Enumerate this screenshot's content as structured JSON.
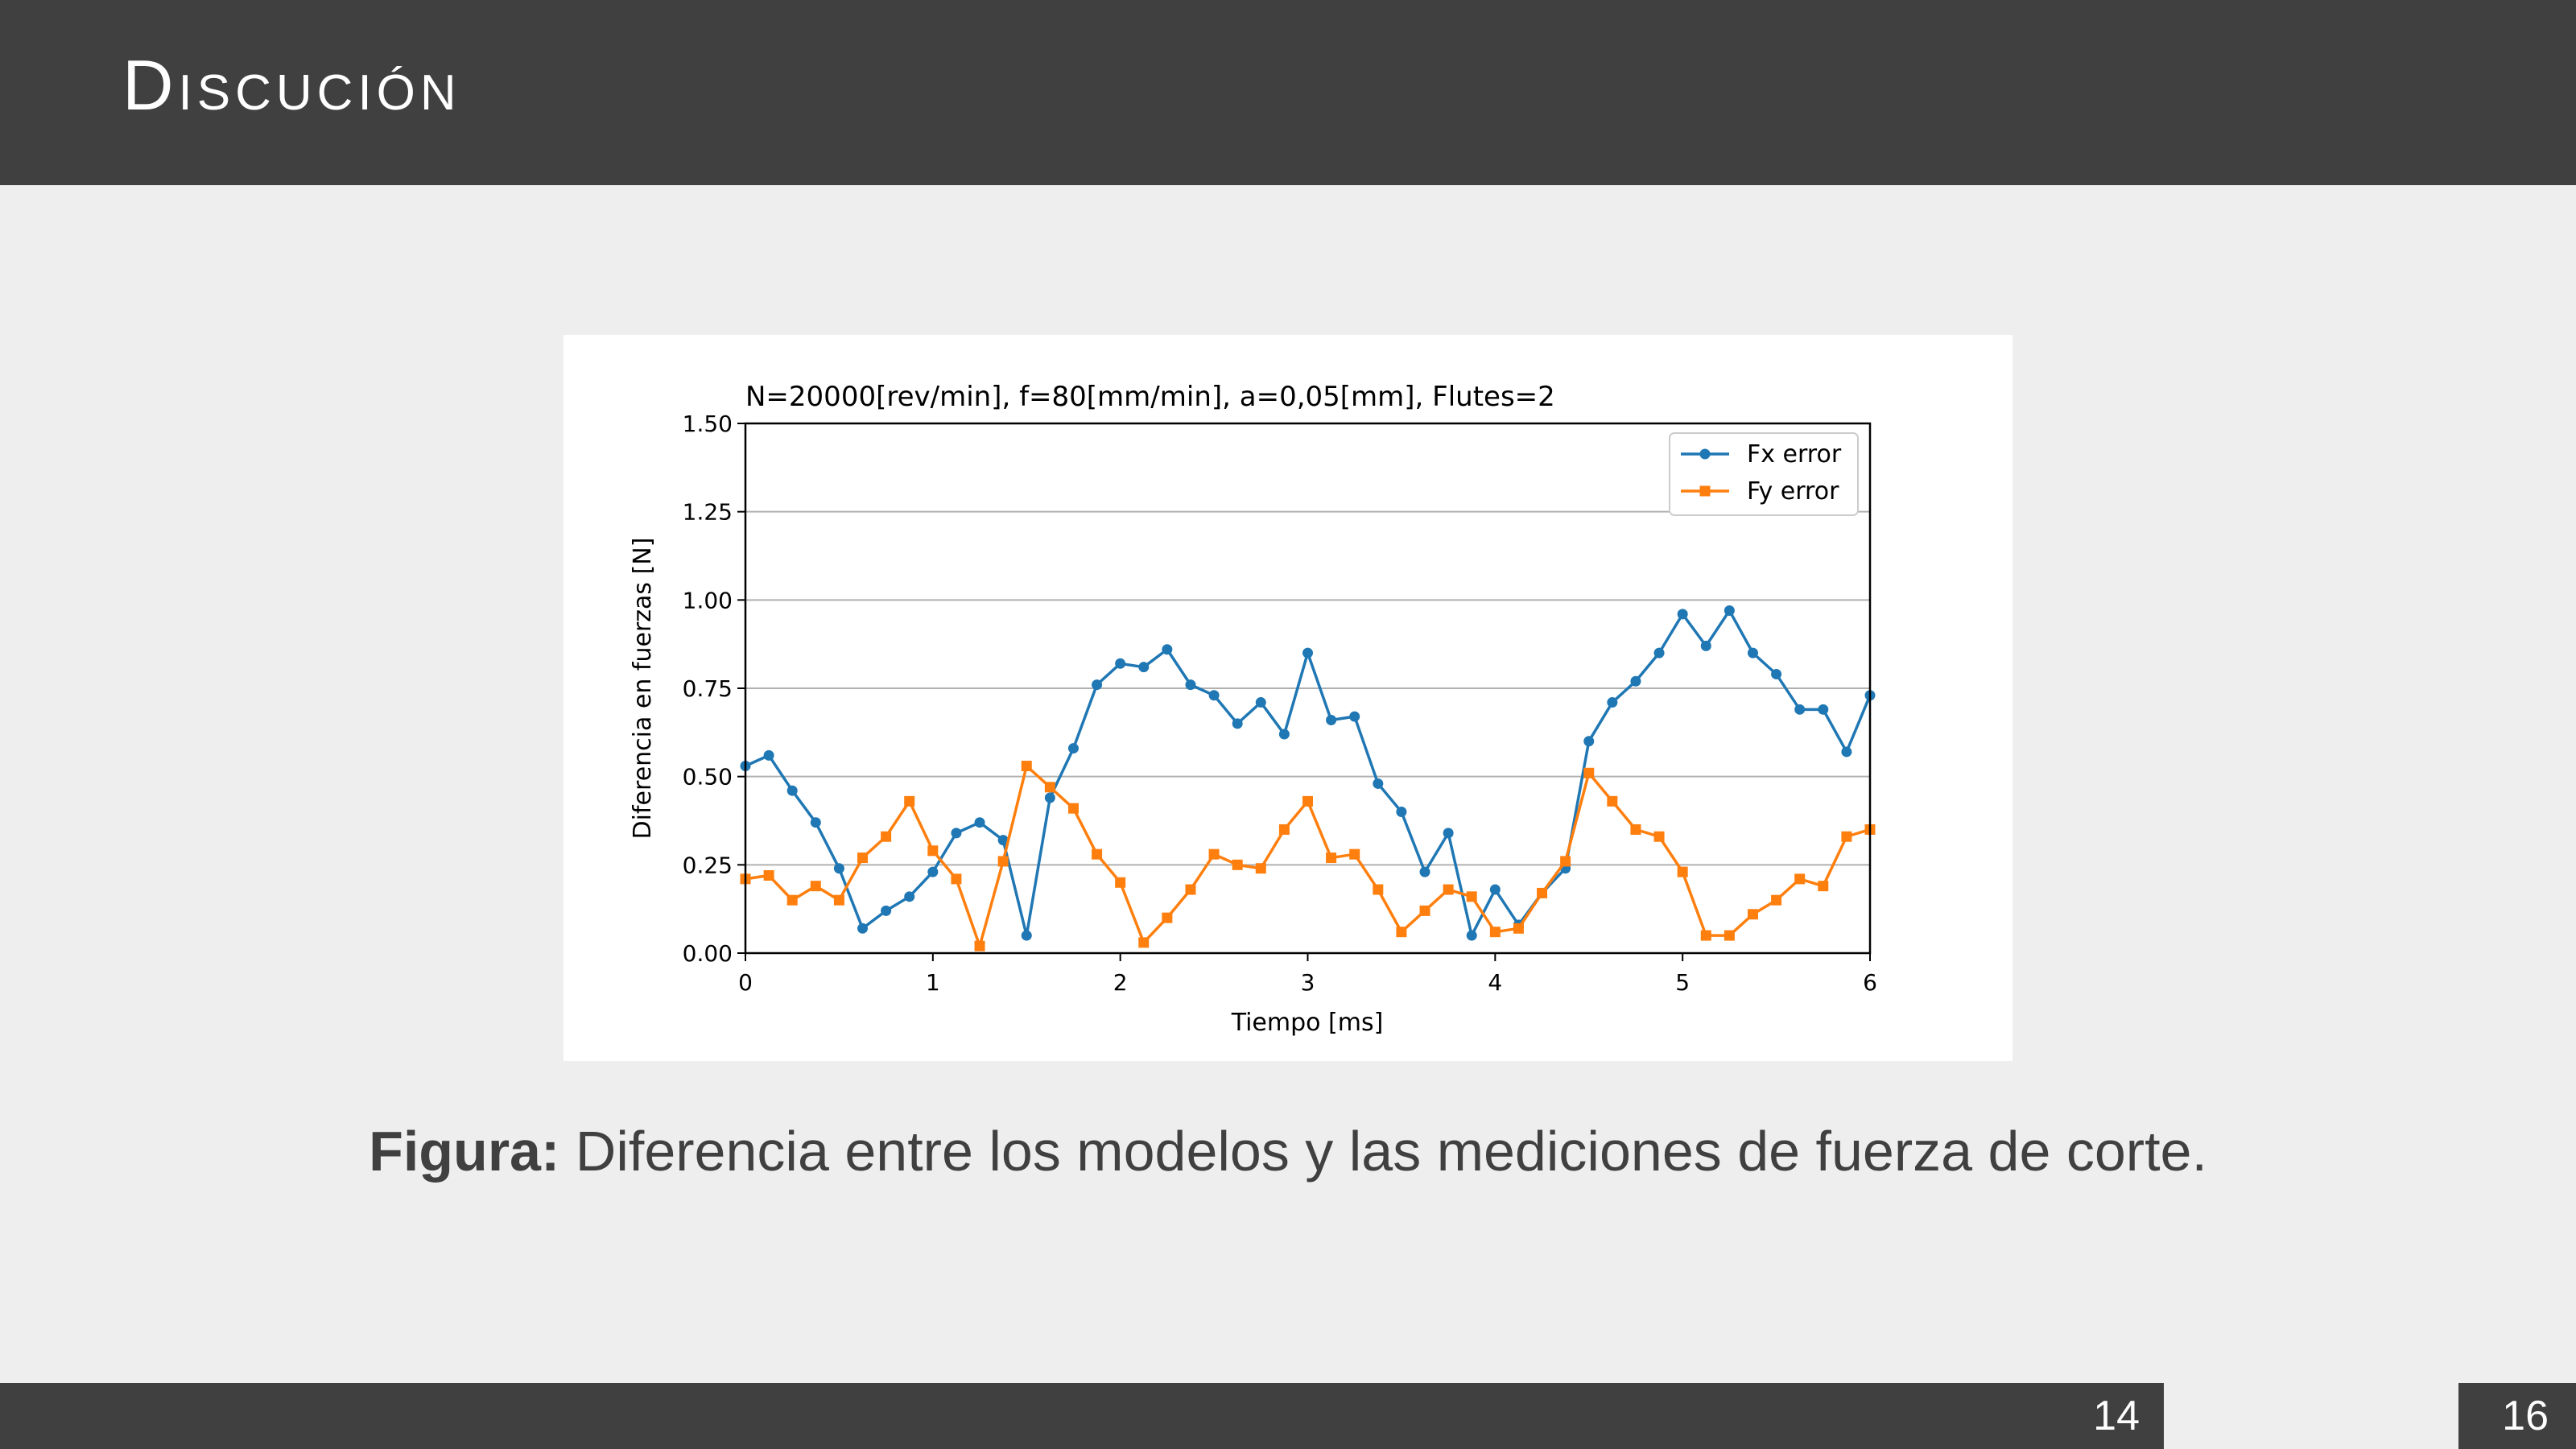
{
  "slide": {
    "title": "Discución",
    "caption_label": "Figura:",
    "caption_text": " Diferencia entre los modelos y las mediciones de fuerza de corte.",
    "page_number": "14",
    "total_pages": "16"
  },
  "colors": {
    "header_bg": "#404040",
    "slide_bg": "#eeeeee",
    "fx": "#1f77b4",
    "fy": "#ff7f0e"
  },
  "chart_data": {
    "type": "line",
    "title": "N=20000[rev/min], f=80[mm/min], a=0,05[mm], Flutes=2",
    "xlabel": "Tiempo [ms]",
    "ylabel": "Diferencia en fuerzas [N]",
    "xlim": [
      0,
      6
    ],
    "ylim": [
      0,
      1.5
    ],
    "xticks": [
      "0",
      "1",
      "2",
      "3",
      "4",
      "5",
      "6"
    ],
    "yticks": [
      "0.00",
      "0.25",
      "0.50",
      "0.75",
      "1.00",
      "1.25",
      "1.50"
    ],
    "grid": "horizontal",
    "legend_position": "top-right",
    "x": [
      0,
      0.125,
      0.25,
      0.375,
      0.5,
      0.625,
      0.75,
      0.875,
      1.0,
      1.125,
      1.25,
      1.375,
      1.5,
      1.625,
      1.75,
      1.875,
      2.0,
      2.125,
      2.25,
      2.375,
      2.5,
      2.625,
      2.75,
      2.875,
      3.0,
      3.125,
      3.25,
      3.375,
      3.5,
      3.625,
      3.75,
      3.875,
      4.0,
      4.125,
      4.25,
      4.375,
      4.5,
      4.625,
      4.75,
      4.875,
      5.0,
      5.125,
      5.25,
      5.375,
      5.5,
      5.625,
      5.75,
      5.875,
      6.0
    ],
    "series": [
      {
        "name": "Fx error",
        "marker": "circle",
        "values": [
          0.53,
          0.56,
          0.46,
          0.37,
          0.24,
          0.07,
          0.12,
          0.16,
          0.23,
          0.34,
          0.37,
          0.32,
          0.05,
          0.44,
          0.58,
          0.76,
          0.82,
          0.81,
          0.86,
          0.76,
          0.73,
          0.65,
          0.71,
          0.62,
          0.85,
          0.66,
          0.67,
          0.48,
          0.4,
          0.23,
          0.34,
          0.05,
          0.18,
          0.08,
          0.17,
          0.24,
          0.6,
          0.71,
          0.77,
          0.85,
          0.96,
          0.87,
          0.97,
          0.85,
          0.79,
          0.69,
          0.69,
          0.57,
          0.73
        ]
      },
      {
        "name": "Fy error",
        "marker": "square",
        "values": [
          0.21,
          0.22,
          0.15,
          0.19,
          0.15,
          0.27,
          0.33,
          0.43,
          0.29,
          0.21,
          0.02,
          0.26,
          0.53,
          0.47,
          0.41,
          0.28,
          0.2,
          0.03,
          0.1,
          0.18,
          0.28,
          0.25,
          0.24,
          0.35,
          0.43,
          0.27,
          0.28,
          0.18,
          0.06,
          0.12,
          0.18,
          0.16,
          0.06,
          0.07,
          0.17,
          0.26,
          0.51,
          0.43,
          0.35,
          0.33,
          0.23,
          0.05,
          0.05,
          0.11,
          0.15,
          0.21,
          0.19,
          0.33,
          0.35
        ]
      }
    ]
  }
}
